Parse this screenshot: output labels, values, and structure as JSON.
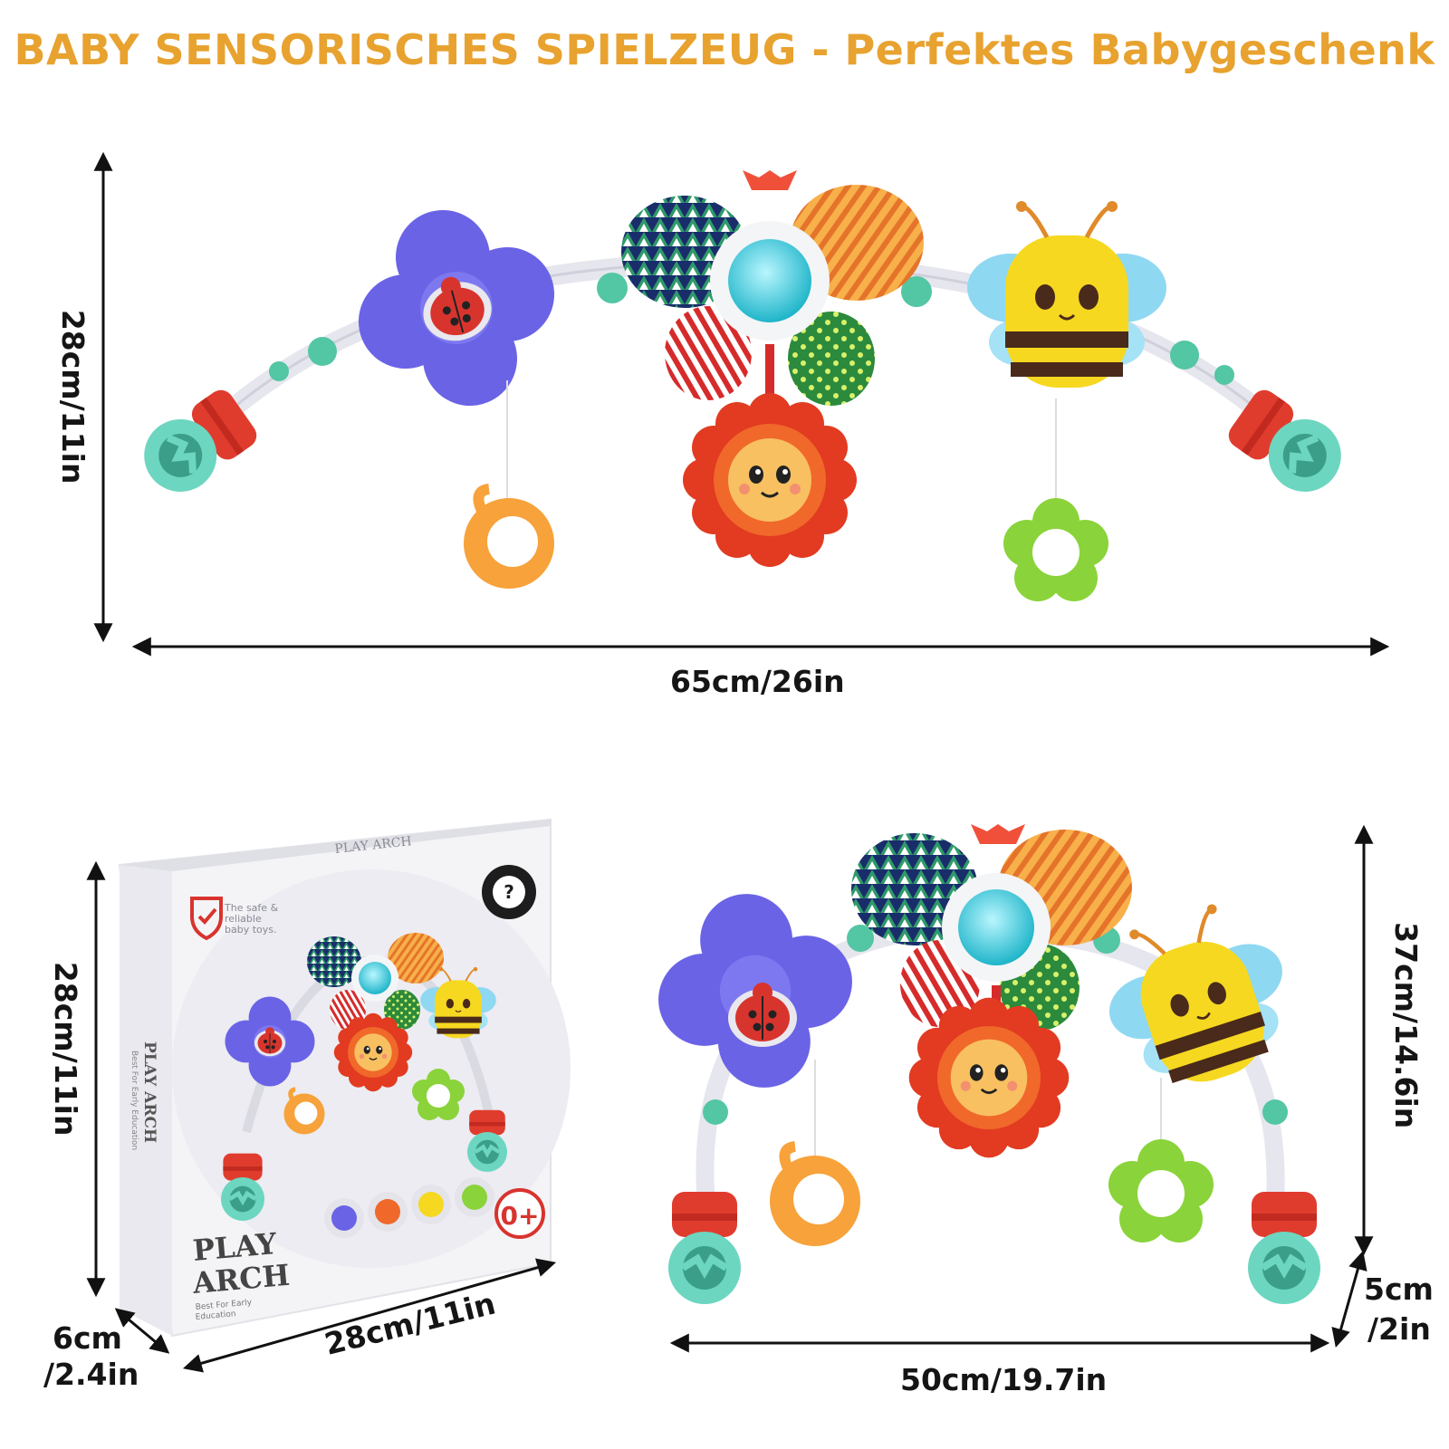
{
  "header": {
    "title": "BABY SENSORISCHES SPIELZEUG - Perfektes Babygeschenk",
    "accent_color": "#e8a22f"
  },
  "top_product": {
    "height_label": "28cm/11in",
    "width_label": "65cm/26in"
  },
  "box": {
    "brand_title_line1": "PLAY",
    "brand_title_line2": "ARCH",
    "top_title": "PLAY ARCH",
    "side_title": "PLAY ARCH",
    "side_subtitle": "Best For Early Education",
    "tagline_line1": "The safe &",
    "tagline_line2": "reliable",
    "tagline_line3": "baby toys.",
    "subtitle_line1": "Best For Early",
    "subtitle_line2": "Education",
    "age_badge": "0+",
    "height_label": "28cm/11in",
    "width_label": "28cm/11in",
    "depth_label_line1": "6cm",
    "depth_label_line2": "/2.4in"
  },
  "bottom_product": {
    "height_label": "37cm/14.6in",
    "width_label": "50cm/19.7in",
    "depth_label_line1": "5cm",
    "depth_label_line2": "/2in"
  },
  "icons": [
    "ladybug-icon",
    "bee-icon",
    "sunflower-icon",
    "snail-teether-icon",
    "flower-teether-icon",
    "shield-check-icon",
    "dimension-arrow-icon"
  ]
}
